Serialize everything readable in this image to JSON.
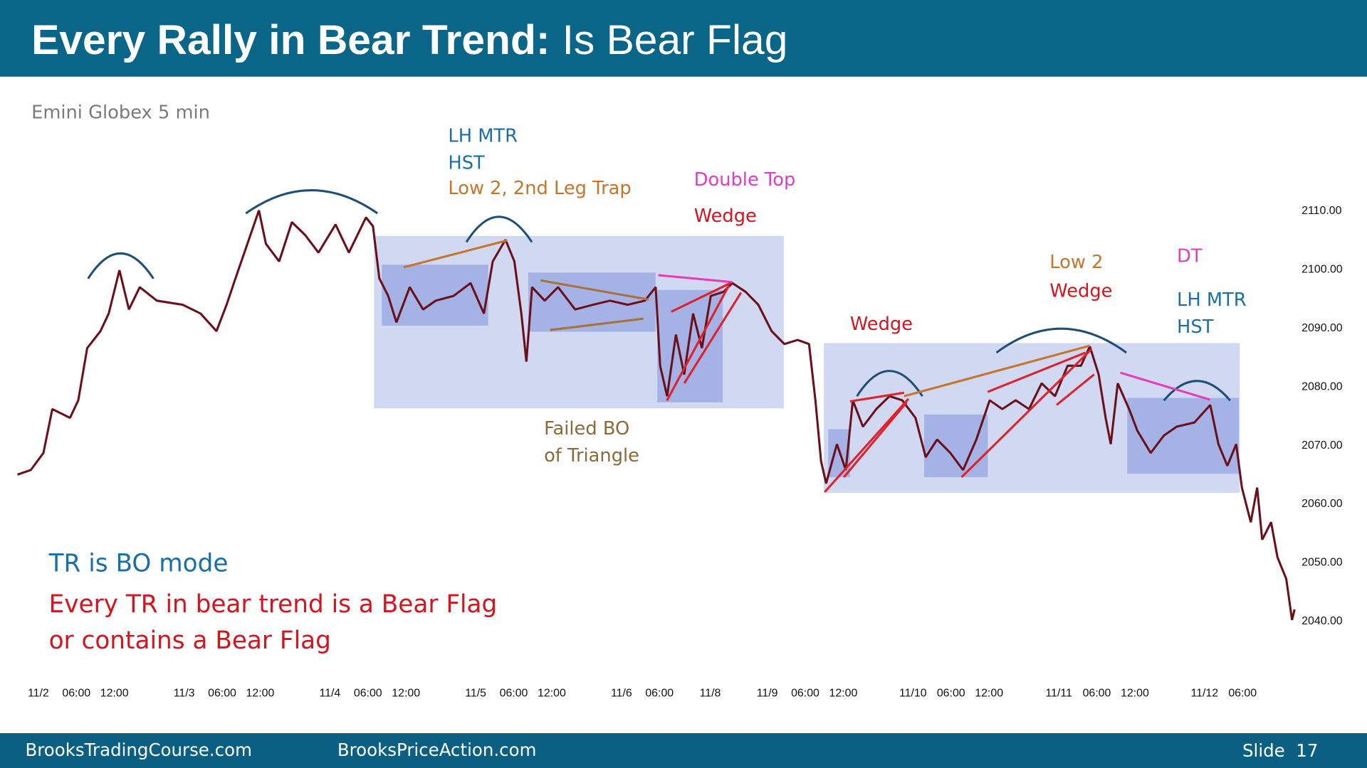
{
  "header": {
    "title_bold": "Every Rally in Bear Trend:",
    "title_rest": "Is Bear Flag"
  },
  "chart_data": {
    "type": "line",
    "subtitle": "Emini Globex 5 min",
    "color": "#6b0f1a",
    "x": [
      -3.3,
      -1.2,
      0.8,
      2.2,
      5.0,
      6.3,
      7.7,
      9.8,
      11.1,
      12.8,
      14.3,
      16.0,
      18.7,
      22.8,
      25.6,
      28.1,
      29.7,
      31.1,
      32.5,
      34.8,
      35.9,
      38.0,
      40.0,
      42.1,
      44.2,
      46.9,
      49.0,
      51.7,
      52.8,
      53.8,
      55.2,
      56.5,
      58.6,
      60.7,
      62.7,
      65.5,
      68.2,
      70.3,
      71.7,
      73.7,
      75.1,
      76.2,
      77.0,
      77.9,
      79.9,
      82.0,
      84.7,
      87.5,
      90.2,
      93.0,
      95.7,
      97.4,
      98.1,
      99.2,
      100.6,
      101.9,
      103.3,
      104.7,
      106.1,
      108.1,
      109.5,
      111.6,
      113.6,
      115.7,
      117.7,
      119.8,
      121.6,
      122.6,
      123.5,
      124.3,
      126.0,
      127.4,
      128.5,
      130.1,
      132.2,
      134.3,
      136.3,
      138.4,
      140.0,
      141.8,
      143.9,
      145.9,
      148.0,
      150.1,
      152.1,
      154.2,
      156.3,
      158.3,
      160.4,
      162.4,
      164.5,
      165.9,
      167.3,
      168.4,
      169.2,
      170.3,
      172.1,
      173.4,
      175.5,
      177.6,
      179.6,
      182.4,
      184.9,
      186.2,
      187.6,
      189.0,
      189.9,
      191.3,
      192.3,
      193.1,
      194.5,
      195.5,
      196.9,
      197.8,
      198.2
    ],
    "values": [
      2064.8,
      2065.6,
      2068.5,
      2076,
      2074.5,
      2077.5,
      2086.4,
      2089.3,
      2092.3,
      2099.7,
      2093,
      2096.8,
      2094.5,
      2093.8,
      2092.3,
      2089.3,
      2093.8,
      2098.3,
      2102.7,
      2109.9,
      2104.2,
      2101.2,
      2107.9,
      2105.7,
      2102.7,
      2107.5,
      2102.7,
      2108.7,
      2107.2,
      2098.3,
      2095.3,
      2090.8,
      2096.8,
      2093,
      2094.5,
      2095.3,
      2097.5,
      2092.3,
      2101.2,
      2104.9,
      2101.2,
      2092.3,
      2084.1,
      2096.8,
      2094.5,
      2096.8,
      2093,
      2093.8,
      2094.5,
      2093.8,
      2094.5,
      2096.8,
      2083.4,
      2078.2,
      2088.7,
      2081.9,
      2092.3,
      2086.4,
      2095.3,
      2096,
      2097.5,
      2096,
      2093.8,
      2089.3,
      2087.1,
      2087.8,
      2087.1,
      2077.5,
      2067.1,
      2063.3,
      2070,
      2065.6,
      2077.5,
      2073,
      2076,
      2078.2,
      2077.5,
      2074.5,
      2067.8,
      2070.8,
      2068.5,
      2065.6,
      2070.8,
      2077.5,
      2076,
      2077.5,
      2076,
      2080.4,
      2078.2,
      2083.4,
      2083.4,
      2086.7,
      2081.9,
      2074.5,
      2070,
      2080.4,
      2076,
      2072.3,
      2068.5,
      2071.5,
      2073,
      2073.7,
      2076.7,
      2070,
      2066.3,
      2070,
      2062.6,
      2056.7,
      2062.6,
      2053.7,
      2056.7,
      2050.7,
      2047,
      2040,
      2041.8
    ],
    "xlim": [
      -4,
      199
    ],
    "xticks": [
      {
        "value": 0,
        "label": "11/2"
      },
      {
        "value": 6,
        "label": "06:00"
      },
      {
        "value": 12,
        "label": "12:00"
      },
      {
        "value": 23,
        "label": "11/3"
      },
      {
        "value": 29,
        "label": "06:00"
      },
      {
        "value": 35,
        "label": "12:00"
      },
      {
        "value": 46,
        "label": "11/4"
      },
      {
        "value": 52,
        "label": "06:00"
      },
      {
        "value": 58,
        "label": "12:00"
      },
      {
        "value": 69,
        "label": "11/5"
      },
      {
        "value": 75,
        "label": "06:00"
      },
      {
        "value": 81,
        "label": "12:00"
      },
      {
        "value": 92,
        "label": "11/6"
      },
      {
        "value": 98,
        "label": "06:00"
      },
      {
        "value": 106,
        "label": "11/8"
      },
      {
        "value": 115,
        "label": "11/9"
      },
      {
        "value": 121,
        "label": "06:00"
      },
      {
        "value": 127,
        "label": "12:00"
      },
      {
        "value": 138,
        "label": "11/10"
      },
      {
        "value": 144,
        "label": "06:00"
      },
      {
        "value": 150,
        "label": "12:00"
      },
      {
        "value": 161,
        "label": "11/11"
      },
      {
        "value": 167,
        "label": "06:00"
      },
      {
        "value": 173,
        "label": "12:00"
      },
      {
        "value": 184,
        "label": "11/12"
      },
      {
        "value": 190,
        "label": "06:00"
      }
    ],
    "ylim": [
      2038,
      2112
    ],
    "yticks": [
      {
        "value": 2040,
        "label": "2040.00"
      },
      {
        "value": 2050,
        "label": "2050.00"
      },
      {
        "value": 2060,
        "label": "2060.00"
      },
      {
        "value": 2070,
        "label": "2070.00"
      },
      {
        "value": 2080,
        "label": "2080.00"
      },
      {
        "value": 2090,
        "label": "2090.00"
      },
      {
        "value": 2100,
        "label": "2100.00"
      },
      {
        "value": 2110,
        "label": "2110.00"
      }
    ],
    "annotations": [
      "LH MTR",
      "HST",
      "Low 2, 2nd Leg Trap",
      "Double Top",
      "Wedge",
      "Failed BO",
      "of Triangle",
      "Wedge",
      "Low 2",
      "Wedge",
      "DT",
      "LH MTR",
      "HST",
      "TR is BO mode",
      "Every TR in bear trend is a Bear Flag",
      "or contains a Bear Flag"
    ]
  },
  "footer": {
    "left": "BrooksTradingCourse.com",
    "middle": "BrooksPriceAction.com",
    "slide": "Slide  17"
  }
}
